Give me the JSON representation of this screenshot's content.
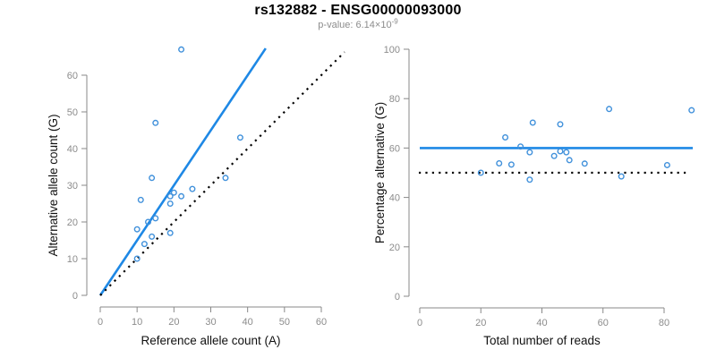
{
  "header": {
    "title": "rs132882 - ENSG00000093000",
    "subtitle_text": "p-value: 6.14×10",
    "subtitle_exponent": "-9"
  },
  "colors": {
    "regression_line": "#1E88E5",
    "point_stroke": "#4191DB",
    "identity_line": "#000000",
    "axis": "#888888",
    "tick_label": "#8C8C8C",
    "axis_title": "#111111"
  },
  "chart_data": [
    {
      "id": "allele-counts",
      "type": "scatter",
      "title": "",
      "xlabel": "Reference allele count (A)",
      "ylabel": "Alternative allele count (G)",
      "xticks": [
        0,
        10,
        20,
        30,
        40,
        50,
        60
      ],
      "yticks": [
        0,
        10,
        20,
        30,
        40,
        50,
        60
      ],
      "xlim": [
        0,
        66.5
      ],
      "ylim": [
        0,
        67.5
      ],
      "grid": false,
      "legend": null,
      "points": [
        [
          22,
          67
        ],
        [
          15,
          47
        ],
        [
          38,
          43
        ],
        [
          14,
          32
        ],
        [
          34,
          32
        ],
        [
          25,
          29
        ],
        [
          20,
          28
        ],
        [
          19,
          27
        ],
        [
          22,
          27
        ],
        [
          11,
          26
        ],
        [
          19,
          25
        ],
        [
          15,
          21
        ],
        [
          13,
          20
        ],
        [
          10,
          18
        ],
        [
          19,
          17
        ],
        [
          14,
          16
        ],
        [
          12,
          14
        ],
        [
          10,
          10
        ]
      ],
      "lines": [
        {
          "name": "fitted-ratio-line",
          "style": "solid",
          "color_key": "regression_line",
          "x1": 0,
          "y1": 0,
          "x2": 44.9,
          "y2": 67.3
        },
        {
          "name": "identity-line",
          "style": "dotted",
          "color_key": "identity_line",
          "x1": 0,
          "y1": 0,
          "x2": 66.3,
          "y2": 66.3
        }
      ]
    },
    {
      "id": "percentage-alternative",
      "type": "scatter",
      "title": "",
      "xlabel": "Total number of reads",
      "ylabel": "Percentage alternative (G)",
      "xticks": [
        0,
        20,
        40,
        60,
        80
      ],
      "yticks": [
        0,
        20,
        40,
        60,
        80,
        100
      ],
      "xlim": [
        0,
        91
      ],
      "ylim": [
        0,
        100
      ],
      "grid": false,
      "legend": null,
      "points": [
        [
          20,
          50.0
        ],
        [
          26,
          53.8
        ],
        [
          28,
          64.3
        ],
        [
          30,
          53.3
        ],
        [
          33,
          60.6
        ],
        [
          36,
          58.3
        ],
        [
          36,
          47.2
        ],
        [
          37,
          70.3
        ],
        [
          44,
          56.8
        ],
        [
          46,
          58.7
        ],
        [
          46,
          69.6
        ],
        [
          48,
          58.3
        ],
        [
          49,
          55.1
        ],
        [
          54,
          53.7
        ],
        [
          62,
          75.8
        ],
        [
          66,
          48.5
        ],
        [
          81,
          53.1
        ],
        [
          89,
          75.3
        ]
      ],
      "lines": [
        {
          "name": "mean-percentage-line",
          "style": "solid",
          "color_key": "regression_line",
          "x1": 0,
          "y1": 60,
          "x2": 89.4,
          "y2": 60
        },
        {
          "name": "fifty-percent-line",
          "style": "dotted",
          "color_key": "identity_line",
          "x1": -0.3,
          "y1": 50,
          "x2": 88.3,
          "y2": 50
        }
      ]
    }
  ]
}
